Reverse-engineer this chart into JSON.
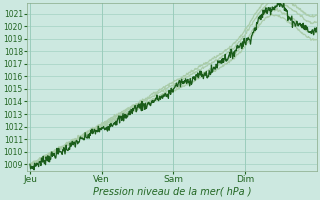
{
  "title": "",
  "xlabel": "Pression niveau de la mer( hPa )",
  "ylim": [
    1008.5,
    1021.8
  ],
  "yticks": [
    1009,
    1010,
    1011,
    1012,
    1013,
    1014,
    1015,
    1016,
    1017,
    1018,
    1019,
    1020,
    1021
  ],
  "day_labels": [
    "Jeu",
    "Ven",
    "Sam",
    "Dim"
  ],
  "day_positions": [
    0,
    24,
    48,
    72
  ],
  "total_hours": 96,
  "bg_color": "#cce8e0",
  "grid_color_major": "#99ccbb",
  "grid_color_minor": "#b8ddd4",
  "line_color_dark": "#1a5c1a",
  "line_color_mid": "#3a8a3a",
  "line_color_light": "#aaccaa",
  "tick_label_color": "#226622",
  "xlabel_color": "#226622",
  "border_color": "#88aa88"
}
